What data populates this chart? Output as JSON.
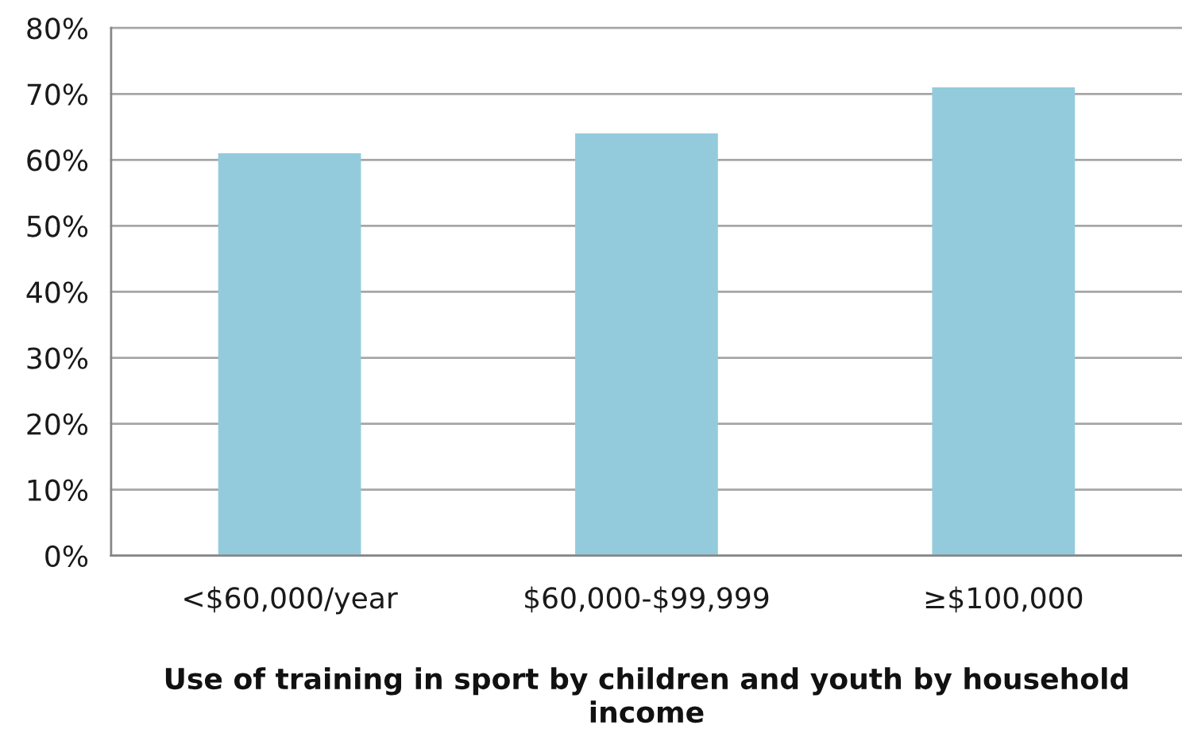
{
  "chart_data": {
    "type": "bar",
    "xlabel": "Use of training in sport by children and youth by household income",
    "categories": [
      "<$60,000/year",
      "$60,000-$99,999",
      "≥$100,000"
    ],
    "values": [
      61,
      64,
      71
    ],
    "color": "#93cbdc",
    "ylim": [
      0,
      80
    ],
    "yticks": [
      {
        "value": 0,
        "label": "0%"
      },
      {
        "value": 10,
        "label": "10%"
      },
      {
        "value": 20,
        "label": "20%"
      },
      {
        "value": 30,
        "label": "30%"
      },
      {
        "value": 40,
        "label": "40%"
      },
      {
        "value": 50,
        "label": "50%"
      },
      {
        "value": 60,
        "label": "60%"
      },
      {
        "value": 70,
        "label": "70%"
      },
      {
        "value": 80,
        "label": "80%"
      }
    ],
    "grid": "y"
  }
}
